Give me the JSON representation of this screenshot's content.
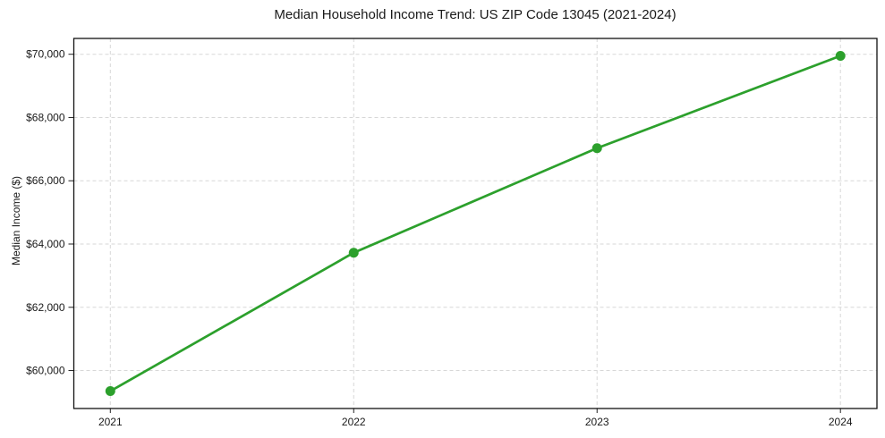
{
  "chart_data": {
    "type": "line",
    "title": "Median Household Income Trend: US ZIP Code 13045 (2021-2024)",
    "xlabel": "",
    "ylabel": "Median Income ($)",
    "x": [
      2021,
      2022,
      2023,
      2024
    ],
    "xtick_labels": [
      "2021",
      "2022",
      "2023",
      "2024"
    ],
    "series": [
      {
        "name": "Median Household Income",
        "values": [
          59350,
          63725,
          67030,
          69950
        ],
        "color": "#2ca02c",
        "marker": "circle"
      }
    ],
    "ytick_values": [
      60000,
      62000,
      64000,
      66000,
      68000,
      70000
    ],
    "ytick_labels": [
      "$60,000",
      "$62,000",
      "$64,000",
      "$66,000",
      "$68,000",
      "$70,000"
    ],
    "ylim": [
      58800,
      70500
    ],
    "xlim": [
      2020.85,
      2024.15
    ],
    "grid": "dashed",
    "grid_color": "#d7d7d7",
    "background_color": "#ffffff",
    "axis_color": "#111111",
    "legend": "none"
  }
}
